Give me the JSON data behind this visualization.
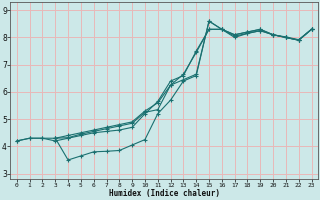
{
  "title": "",
  "xlabel": "Humidex (Indice chaleur)",
  "xlim": [
    -0.5,
    23.5
  ],
  "ylim": [
    2.8,
    9.3
  ],
  "xticks": [
    0,
    1,
    2,
    3,
    4,
    5,
    6,
    7,
    8,
    9,
    10,
    11,
    12,
    13,
    14,
    15,
    16,
    17,
    18,
    19,
    20,
    21,
    22,
    23
  ],
  "yticks": [
    3,
    4,
    5,
    6,
    7,
    8,
    9
  ],
  "bg_color": "#cce8e8",
  "grid_color": "#e8b8b8",
  "line_color": "#1a7070",
  "figsize": [
    3.2,
    2.0
  ],
  "dpi": 100,
  "lines": [
    {
      "x": [
        0,
        1,
        2,
        3,
        4,
        5,
        6,
        7,
        8,
        9,
        10,
        11,
        12,
        13,
        14,
        15,
        16,
        17,
        18,
        19,
        20,
        21,
        22,
        23
      ],
      "y": [
        4.2,
        4.3,
        4.3,
        4.2,
        4.3,
        4.4,
        4.5,
        4.55,
        4.6,
        4.7,
        5.2,
        5.65,
        6.4,
        6.6,
        7.5,
        8.3,
        8.3,
        8.0,
        8.15,
        8.25,
        8.1,
        8.0,
        7.9,
        8.3
      ]
    },
    {
      "x": [
        0,
        1,
        2,
        3,
        4,
        5,
        6,
        7,
        8,
        9,
        10,
        11,
        12,
        13,
        14,
        15,
        16,
        17,
        18,
        19,
        20,
        21,
        22,
        23
      ],
      "y": [
        4.2,
        4.3,
        4.3,
        4.3,
        4.4,
        4.5,
        4.6,
        4.7,
        4.8,
        4.9,
        5.3,
        5.6,
        6.25,
        6.65,
        7.45,
        8.3,
        8.3,
        8.1,
        8.2,
        8.3,
        8.1,
        8.0,
        7.9,
        8.3
      ]
    },
    {
      "x": [
        3,
        4,
        5,
        6,
        7,
        8,
        9,
        10,
        11,
        12,
        13,
        14,
        15,
        16,
        17,
        18,
        19,
        20,
        21,
        22,
        23
      ],
      "y": [
        4.3,
        3.5,
        3.65,
        3.8,
        3.82,
        3.85,
        4.05,
        4.25,
        5.2,
        5.7,
        6.4,
        6.6,
        8.6,
        8.3,
        8.1,
        8.2,
        8.3,
        8.1,
        8.0,
        7.9,
        8.3
      ]
    },
    {
      "x": [
        3,
        4,
        5,
        6,
        7,
        8,
        9,
        10,
        11,
        12,
        13,
        14,
        15,
        16,
        17,
        18,
        19,
        20,
        21,
        22,
        23
      ],
      "y": [
        4.3,
        4.32,
        4.45,
        4.55,
        4.65,
        4.75,
        4.85,
        5.25,
        5.35,
        6.25,
        6.45,
        6.65,
        8.6,
        8.3,
        8.05,
        8.15,
        8.25,
        8.1,
        8.02,
        7.92,
        8.3
      ]
    }
  ]
}
